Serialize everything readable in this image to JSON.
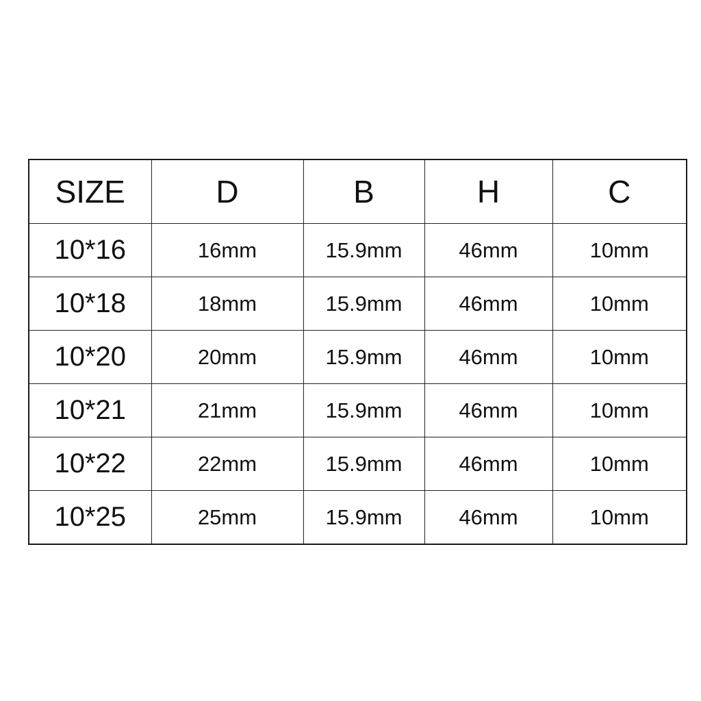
{
  "headers": [
    "SIZE",
    "D",
    "B",
    "H",
    "C"
  ],
  "rows": [
    [
      "10*16",
      "16mm",
      "15.9mm",
      "46mm",
      "10mm"
    ],
    [
      "10*18",
      "18mm",
      "15.9mm",
      "46mm",
      "10mm"
    ],
    [
      "10*20",
      "20mm",
      "15.9mm",
      "46mm",
      "10mm"
    ],
    [
      "10*21",
      "21mm",
      "15.9mm",
      "46mm",
      "10mm"
    ],
    [
      "10*22",
      "22mm",
      "15.9mm",
      "46mm",
      "10mm"
    ],
    [
      "10*25",
      "25mm",
      "15.9mm",
      "46mm",
      "10mm"
    ]
  ]
}
